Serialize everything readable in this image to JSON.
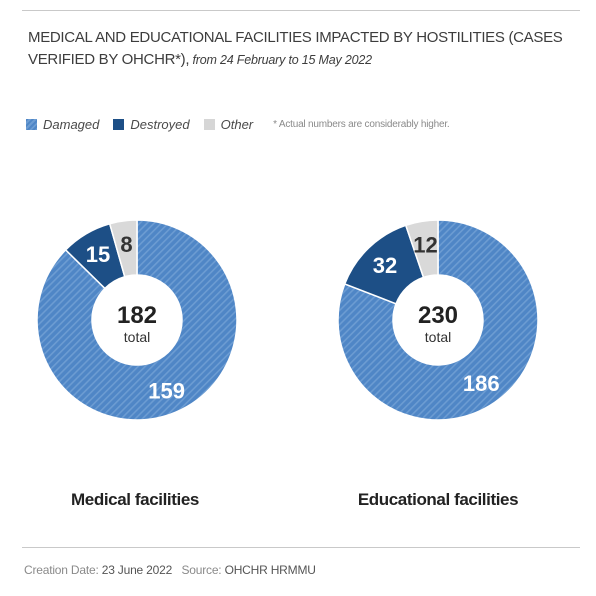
{
  "title": {
    "main": "MEDICAL AND EDUCATIONAL FACILITIES IMPACTED BY HOSTILITIES (CASES VERIFIED BY OHCHR*),",
    "sub": " from 24 February to 15 May 2022"
  },
  "legend": {
    "items": [
      {
        "label": "Damaged",
        "color": "#4f86c6"
      },
      {
        "label": "Destroyed",
        "color": "#1d4f86"
      },
      {
        "label": "Other",
        "color": "#d6d6d6"
      }
    ],
    "note": "* Actual numbers are considerably higher."
  },
  "colors": {
    "damaged": "#4f86c6",
    "damaged_stripe": "#6c9cd2",
    "destroyed": "#1d4f86",
    "other": "#d9d9d9"
  },
  "chart_data": [
    {
      "type": "pie",
      "title": "Medical facilities",
      "categories": [
        "Damaged",
        "Destroyed",
        "Other"
      ],
      "values": [
        159,
        15,
        8
      ],
      "total": 182,
      "total_label": "total"
    },
    {
      "type": "pie",
      "title": "Educational facilities",
      "categories": [
        "Damaged",
        "Destroyed",
        "Other"
      ],
      "values": [
        186,
        32,
        12
      ],
      "total": 230,
      "total_label": "total"
    }
  ],
  "footer": {
    "creation_label": "Creation Date:",
    "creation_date": "23 June 2022",
    "source_label": "Source:",
    "source": "OHCHR HRMMU"
  }
}
